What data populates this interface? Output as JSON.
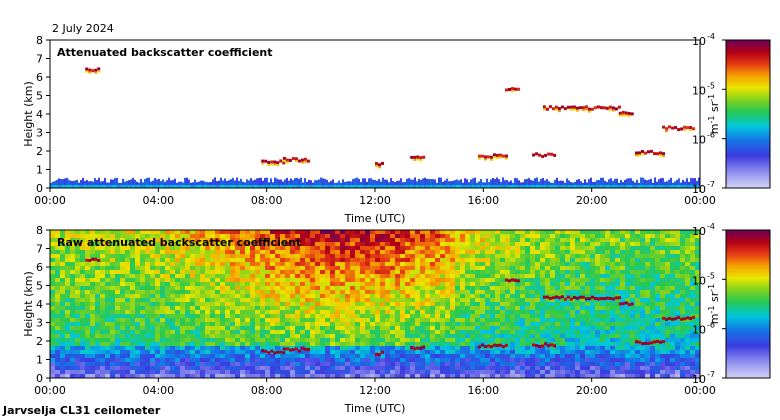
{
  "date_label": "2 July 2024",
  "footer_label": "Jarvselja CL31 ceilometer",
  "colorbar": {
    "tick_labels": [
      "10",
      "10",
      "10",
      "10"
    ],
    "tick_exponents": [
      "-4",
      "-5",
      "-6",
      "-7"
    ],
    "unit_label": "m",
    "unit_exp1": "-1",
    "unit_mid": " sr",
    "unit_exp2": "-1",
    "range": [
      1e-07,
      0.0001
    ],
    "scale": "log"
  },
  "chart_data": [
    {
      "type": "heatmap",
      "title": "Attenuated backscatter coefficient",
      "xlabel": "Time (UTC)",
      "ylabel": "Height (km)",
      "x_ticks": [
        "00:00",
        "04:00",
        "08:00",
        "12:00",
        "16:00",
        "20:00",
        "00:00"
      ],
      "y_ticks": [
        "0",
        "1",
        "2",
        "3",
        "4",
        "5",
        "6",
        "7",
        "8"
      ],
      "xlim": [
        0,
        24
      ],
      "ylim": [
        0,
        8
      ],
      "background": "#ffffff",
      "features": [
        {
          "kind": "boundary_layer",
          "t_start": 0,
          "t_end": 24,
          "height_top": 0.5
        },
        {
          "kind": "cloud_layer",
          "t_start": 1.3,
          "t_end": 1.8,
          "height": 6.35
        },
        {
          "kind": "cloud_layer",
          "t_start": 7.8,
          "t_end": 8.6,
          "height": 1.4
        },
        {
          "kind": "cloud_layer",
          "t_start": 8.6,
          "t_end": 9.5,
          "height": 1.5
        },
        {
          "kind": "cloud_layer",
          "t_start": 12.0,
          "t_end": 12.3,
          "height": 1.3
        },
        {
          "kind": "cloud_layer",
          "t_start": 13.3,
          "t_end": 13.8,
          "height": 1.6
        },
        {
          "kind": "cloud_layer",
          "t_start": 15.8,
          "t_end": 16.8,
          "height": 1.7
        },
        {
          "kind": "cloud_layer",
          "t_start": 17.8,
          "t_end": 18.6,
          "height": 1.75
        },
        {
          "kind": "cloud_layer",
          "t_start": 16.8,
          "t_end": 17.3,
          "height": 5.3
        },
        {
          "kind": "cloud_layer",
          "t_start": 18.2,
          "t_end": 21.0,
          "height": 4.3
        },
        {
          "kind": "cloud_layer",
          "t_start": 21.0,
          "t_end": 21.5,
          "height": 4.0
        },
        {
          "kind": "cloud_layer",
          "t_start": 21.6,
          "t_end": 22.6,
          "height": 1.9
        },
        {
          "kind": "cloud_layer",
          "t_start": 22.6,
          "t_end": 23.8,
          "height": 3.2
        }
      ]
    },
    {
      "type": "heatmap",
      "title": "Raw attenuated backscatter coefficient",
      "xlabel": "Time (UTC)",
      "ylabel": "Height (km)",
      "x_ticks": [
        "00:00",
        "04:00",
        "08:00",
        "12:00",
        "16:00",
        "20:00",
        "00:00"
      ],
      "y_ticks": [
        "0",
        "1",
        "2",
        "3",
        "4",
        "5",
        "6",
        "7",
        "8"
      ],
      "xlim": [
        0,
        24
      ],
      "ylim": [
        0,
        8
      ],
      "background": "noise"
    }
  ]
}
